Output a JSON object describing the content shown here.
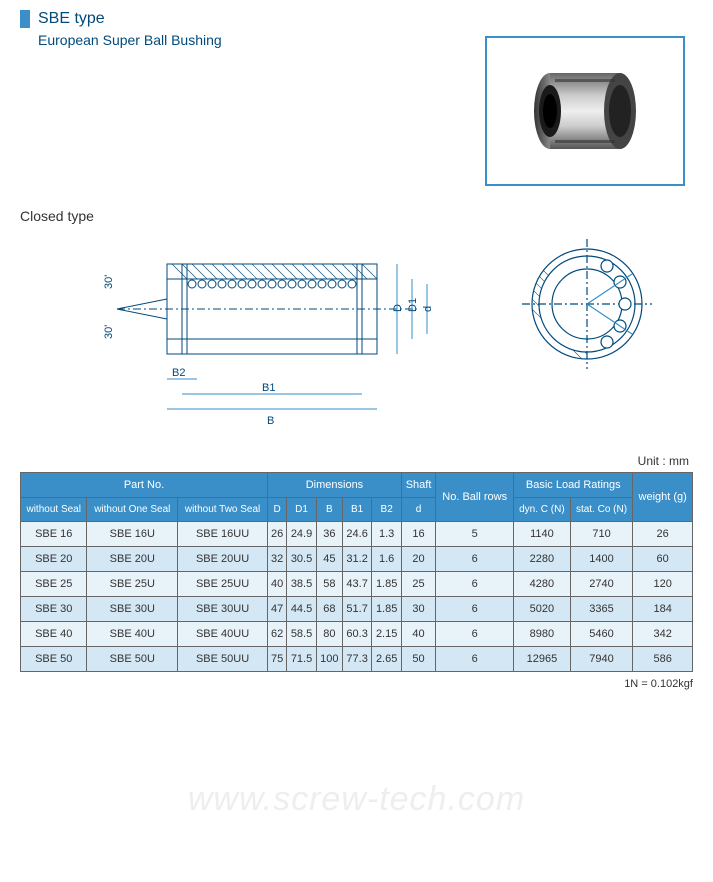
{
  "header": {
    "type_label": "SBE type",
    "subtitle": "European Super Ball Bushing"
  },
  "section_label": "Closed type",
  "unit_label": "Unit : mm",
  "footnote": "1N = 0.102kgf",
  "watermark": "www.screw-tech.com",
  "diagram_labels": {
    "angle1": "30'",
    "angle2": "30'",
    "B2": "B2",
    "B1": "B1",
    "B": "B",
    "d": "d",
    "D1": "D1",
    "D": "D"
  },
  "table": {
    "group_headers": [
      "Part No.",
      "Dimensions",
      "Shaft",
      "No. Ball rows",
      "Basic Load Ratings",
      "weight (g)"
    ],
    "sub_headers": {
      "part": [
        "without Seal",
        "without One Seal",
        "without Two Seal"
      ],
      "dim": [
        "D",
        "D1",
        "B",
        "B1",
        "B2"
      ],
      "shaft": "d",
      "load": [
        "dyn. C (N)",
        "stat. Co (N)"
      ]
    },
    "rows": [
      [
        "SBE 16",
        "SBE 16U",
        "SBE 16UU",
        "26",
        "24.9",
        "36",
        "24.6",
        "1.3",
        "16",
        "5",
        "1140",
        "710",
        "26"
      ],
      [
        "SBE 20",
        "SBE 20U",
        "SBE 20UU",
        "32",
        "30.5",
        "45",
        "31.2",
        "1.6",
        "20",
        "6",
        "2280",
        "1400",
        "60"
      ],
      [
        "SBE 25",
        "SBE 25U",
        "SBE 25UU",
        "40",
        "38.5",
        "58",
        "43.7",
        "1.85",
        "25",
        "6",
        "4280",
        "2740",
        "120"
      ],
      [
        "SBE 30",
        "SBE 30U",
        "SBE 30UU",
        "47",
        "44.5",
        "68",
        "51.7",
        "1.85",
        "30",
        "6",
        "5020",
        "3365",
        "184"
      ],
      [
        "SBE 40",
        "SBE 40U",
        "SBE 40UU",
        "62",
        "58.5",
        "80",
        "60.3",
        "2.15",
        "40",
        "6",
        "8980",
        "5460",
        "342"
      ],
      [
        "SBE 50",
        "SBE 50U",
        "SBE 50UU",
        "75",
        "71.5",
        "100",
        "77.3",
        "2.65",
        "50",
        "6",
        "12965",
        "7940",
        "586"
      ]
    ]
  },
  "colors": {
    "accent": "#3a8fc9",
    "header_text": "#004a7c",
    "row_odd": "#e8f2f9",
    "row_even": "#d4e7f4",
    "border": "#666"
  }
}
